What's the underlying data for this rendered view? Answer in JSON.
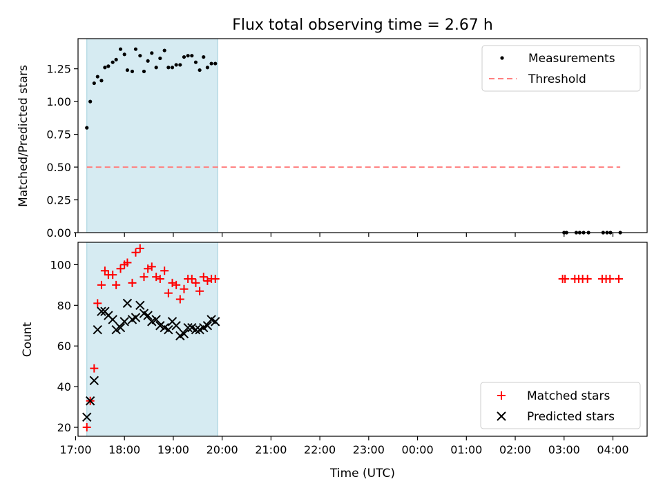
{
  "chart_data": {
    "title": "Flux total observing time = 2.67 h",
    "xlabel": "Time (UTC)",
    "xlim": [
      17.05,
      28.7
    ],
    "x_ticks": [
      {
        "t": 17,
        "label": "17:00"
      },
      {
        "t": 18,
        "label": "18:00"
      },
      {
        "t": 19,
        "label": "19:00"
      },
      {
        "t": 20,
        "label": "20:00"
      },
      {
        "t": 21,
        "label": "21:00"
      },
      {
        "t": 22,
        "label": "22:00"
      },
      {
        "t": 23,
        "label": "23:00"
      },
      {
        "t": 24,
        "label": "00:00"
      },
      {
        "t": 25,
        "label": "01:00"
      },
      {
        "t": 26,
        "label": "02:00"
      },
      {
        "t": 27,
        "label": "03:00"
      },
      {
        "t": 28,
        "label": "04:00"
      }
    ],
    "observing_span": [
      17.23,
      19.91
    ],
    "top": {
      "type": "scatter",
      "ylabel": "Matched/Predicted stars",
      "ylim": [
        0,
        1.48
      ],
      "y_ticks": [
        "0.00",
        "0.25",
        "0.50",
        "0.75",
        "1.00",
        "1.25"
      ],
      "threshold": {
        "value": 0.5,
        "x_range": [
          17.23,
          28.15
        ]
      },
      "legend": {
        "position": "upper right",
        "items": [
          "Measurements",
          "Threshold"
        ]
      },
      "measurements": {
        "x": [
          17.23,
          17.3,
          17.38,
          17.45,
          17.53,
          17.6,
          17.67,
          17.76,
          17.83,
          17.92,
          18.0,
          18.06,
          18.16,
          18.23,
          18.32,
          18.4,
          18.48,
          18.56,
          18.65,
          18.73,
          18.82,
          18.9,
          18.98,
          19.06,
          19.14,
          19.22,
          19.3,
          19.38,
          19.46,
          19.54,
          19.62,
          19.7,
          19.78,
          19.86,
          27.0,
          27.05,
          27.25,
          27.32,
          27.4,
          27.5,
          27.8,
          27.88,
          27.95,
          28.15
        ],
        "y": [
          0.8,
          1.0,
          1.14,
          1.19,
          1.16,
          1.26,
          1.27,
          1.3,
          1.32,
          1.4,
          1.36,
          1.24,
          1.23,
          1.4,
          1.35,
          1.23,
          1.31,
          1.37,
          1.26,
          1.33,
          1.39,
          1.26,
          1.26,
          1.28,
          1.28,
          1.34,
          1.35,
          1.35,
          1.3,
          1.24,
          1.34,
          1.26,
          1.29,
          1.29,
          0,
          0,
          0,
          0,
          0,
          0,
          0,
          0,
          0,
          0
        ]
      }
    },
    "bottom": {
      "type": "scatter",
      "ylabel": "Count",
      "ylim": [
        15.6,
        111
      ],
      "y_ticks": [
        "20",
        "40",
        "60",
        "80",
        "100"
      ],
      "legend": {
        "position": "lower right",
        "items": [
          "Matched stars",
          "Predicted stars"
        ]
      },
      "matched": {
        "x": [
          17.23,
          17.3,
          17.38,
          17.45,
          17.53,
          17.6,
          17.67,
          17.76,
          17.83,
          17.92,
          18.0,
          18.06,
          18.16,
          18.23,
          18.32,
          18.4,
          18.48,
          18.56,
          18.65,
          18.73,
          18.82,
          18.9,
          18.98,
          19.06,
          19.14,
          19.22,
          19.3,
          19.38,
          19.46,
          19.54,
          19.62,
          19.7,
          19.78,
          19.86,
          26.97,
          27.02,
          27.22,
          27.3,
          27.38,
          27.48,
          27.78,
          27.86,
          27.94,
          28.12
        ],
        "y": [
          20,
          33,
          49,
          81,
          90,
          97,
          95,
          95,
          90,
          98,
          100,
          101,
          91,
          106,
          108,
          94,
          98,
          99,
          94,
          93,
          97,
          86,
          91,
          90,
          83,
          88,
          93,
          93,
          91,
          87,
          94,
          92,
          93,
          93,
          93,
          93,
          93,
          93,
          93,
          93,
          93,
          93,
          93,
          93
        ]
      },
      "predicted": {
        "x": [
          17.23,
          17.3,
          17.38,
          17.45,
          17.53,
          17.6,
          17.67,
          17.76,
          17.83,
          17.92,
          18.0,
          18.06,
          18.16,
          18.23,
          18.32,
          18.4,
          18.48,
          18.56,
          18.65,
          18.73,
          18.82,
          18.9,
          18.98,
          19.06,
          19.14,
          19.22,
          19.3,
          19.38,
          19.46,
          19.54,
          19.62,
          19.7,
          19.78,
          19.86
        ],
        "y": [
          25,
          33,
          43,
          68,
          77,
          77,
          75,
          73,
          68,
          69,
          72,
          81,
          73,
          74,
          80,
          76,
          75,
          72,
          73,
          70,
          69,
          68,
          72,
          70,
          65,
          66,
          69,
          69,
          68,
          68,
          69,
          70,
          73,
          72
        ]
      }
    }
  }
}
